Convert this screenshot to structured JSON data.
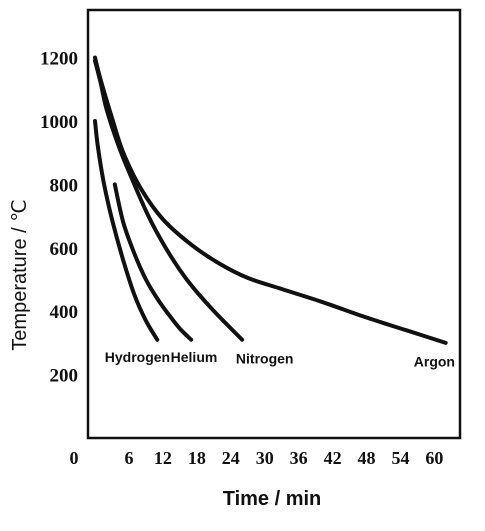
{
  "chart_data": {
    "type": "line",
    "xlabel": "Time / min",
    "ylabel": "Temperature / ℃",
    "xlim": [
      0,
      64
    ],
    "ylim": [
      0,
      1350
    ],
    "x_ticks": [
      "0",
      "6",
      "12",
      "18",
      "24",
      "30",
      "36",
      "42",
      "48",
      "54",
      "60"
    ],
    "x_tick_values": [
      0,
      6,
      12,
      18,
      24,
      30,
      36,
      42,
      48,
      54,
      60
    ],
    "y_ticks": [
      "200",
      "400",
      "600",
      "800",
      "1000",
      "1200"
    ],
    "y_tick_values": [
      200,
      400,
      600,
      800,
      1000,
      1200
    ],
    "grid": false,
    "legend": "none",
    "series": [
      {
        "name": "Hydrogen",
        "x": [
          0,
          0.5,
          1.5,
          3,
          5,
          7,
          9,
          11
        ],
        "y": [
          1000,
          920,
          810,
          690,
          560,
          450,
          370,
          310
        ],
        "label": {
          "x": 7.5,
          "y": 240
        }
      },
      {
        "name": "Helium",
        "x": [
          3.5,
          5,
          7,
          9,
          11,
          13,
          15,
          17
        ],
        "y": [
          800,
          680,
          580,
          500,
          440,
          390,
          345,
          310
        ],
        "label": {
          "x": 17.5,
          "y": 240
        }
      },
      {
        "name": "Nitrogen",
        "x": [
          0,
          1,
          2,
          4,
          6,
          10,
          15,
          20,
          26
        ],
        "y": [
          1190,
          1120,
          1040,
          930,
          840,
          680,
          530,
          420,
          310
        ],
        "label": {
          "x": 30,
          "y": 235
        }
      },
      {
        "name": "Argon",
        "x": [
          0,
          1,
          3,
          5,
          8,
          12,
          17,
          22,
          27,
          33,
          40,
          48,
          55,
          62
        ],
        "y": [
          1200,
          1130,
          1010,
          900,
          790,
          690,
          610,
          550,
          505,
          470,
          430,
          380,
          340,
          300
        ],
        "label": {
          "x": 60,
          "y": 225
        }
      }
    ]
  }
}
